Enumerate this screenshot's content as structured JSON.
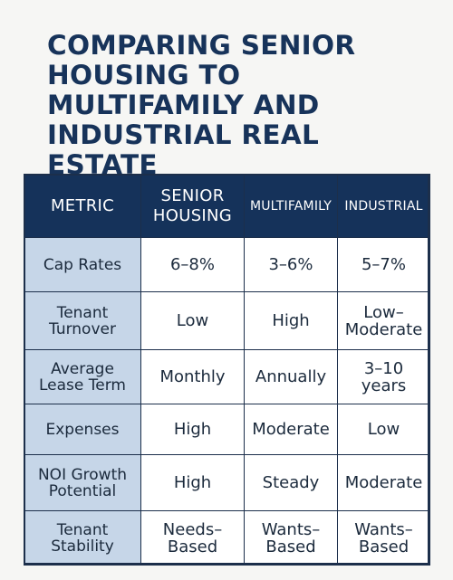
{
  "title": "COMPARING SENIOR HOUSING TO MULTIFAMILY AND INDUSTRIAL REAL ESTATE",
  "table": {
    "headers": [
      "METRIC",
      "SENIOR HOUSING",
      "MULTIFAMILY",
      "INDUSTRIAL"
    ],
    "rows": [
      {
        "metric": "Cap Rates",
        "senior": "6–8%",
        "multifamily": "3–6%",
        "industrial": "5–7%"
      },
      {
        "metric": "Tenant Turnover",
        "senior": "Low",
        "multifamily": "High",
        "industrial": "Low– Moderate"
      },
      {
        "metric": "Average Lease Term",
        "senior": "Monthly",
        "multifamily": "Annually",
        "industrial": "3–10 years"
      },
      {
        "metric": "Expenses",
        "senior": "High",
        "multifamily": "Moderate",
        "industrial": "Low"
      },
      {
        "metric": "NOI Growth Potential",
        "senior": "High",
        "multifamily": "Steady",
        "industrial": "Moderate"
      },
      {
        "metric": "Tenant Stability",
        "senior": "Needs– Based",
        "multifamily": "Wants– Based",
        "industrial": "Wants– Based"
      }
    ]
  },
  "colors": {
    "header_bg": "#15325a",
    "metric_bg": "#c6d6e8",
    "title": "#17335a",
    "page_bg": "#f6f6f4"
  }
}
